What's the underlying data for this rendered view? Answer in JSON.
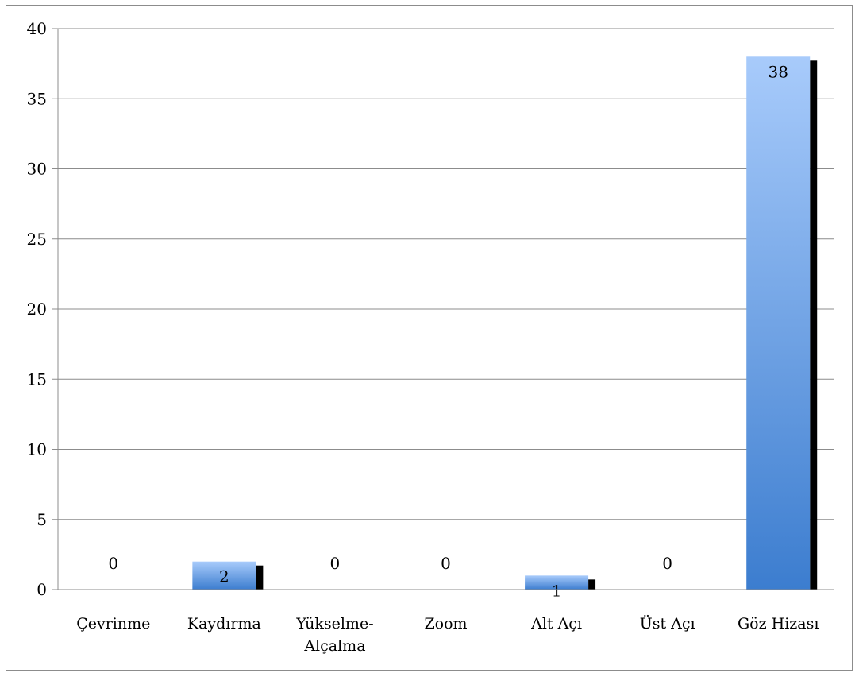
{
  "chart_data": {
    "type": "bar",
    "categories": [
      [
        "Çevrinme"
      ],
      [
        "Kaydırma"
      ],
      [
        "Yükselme-",
        "Alçalma"
      ],
      [
        "Zoom"
      ],
      [
        "Alt Açı"
      ],
      [
        "Üst Açı"
      ],
      [
        "Göz Hizası"
      ]
    ],
    "values": [
      0,
      2,
      0,
      0,
      1,
      0,
      38
    ],
    "data_labels": [
      "0",
      "2",
      "0",
      "0",
      "1",
      "0",
      "38"
    ],
    "title": "",
    "xlabel": "",
    "ylabel": "",
    "ylim": [
      0,
      40
    ],
    "yticks": [
      "0",
      "5",
      "10",
      "15",
      "20",
      "25",
      "30",
      "35",
      "40"
    ],
    "grid": true,
    "legend": "none",
    "colors": {
      "bar_top": "#a8cbfb",
      "bar_bottom": "#3c7dcf",
      "shadow": "#000000",
      "grid": "#8c8c8c",
      "axis": "#8c8c8c"
    }
  }
}
